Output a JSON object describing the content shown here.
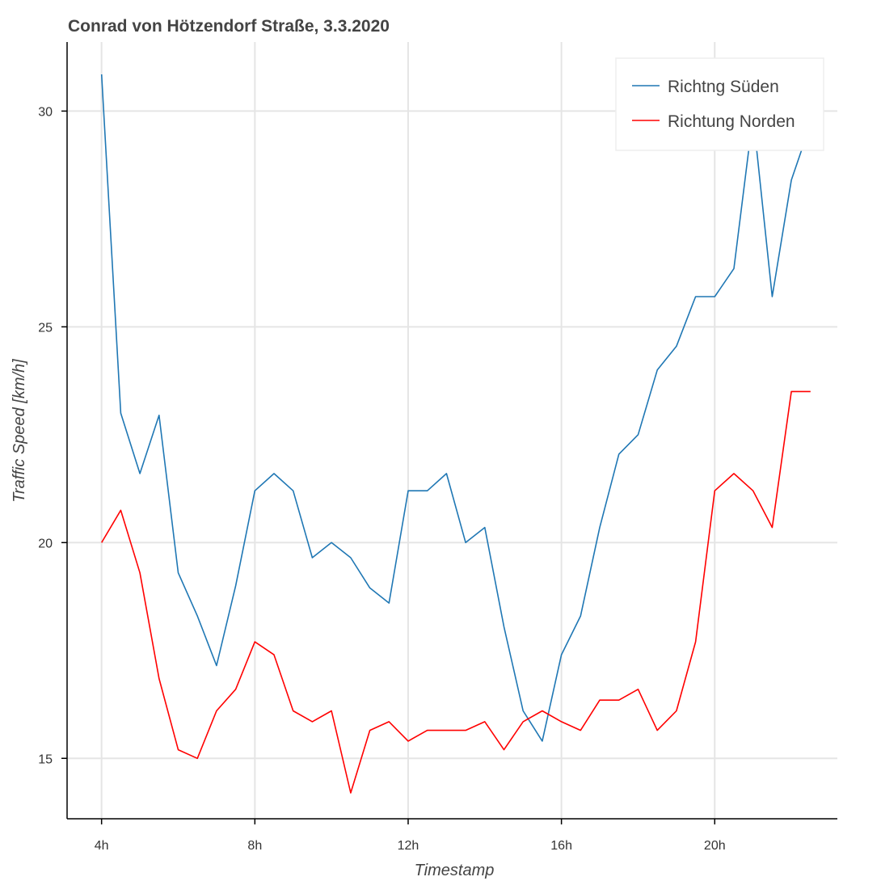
{
  "chart_data": {
    "type": "line",
    "title": "Conrad von Hötzendorf Straße, 3.3.2020",
    "xlabel": "Timestamp",
    "ylabel": "Traffic Speed [km/h]",
    "xlim": [
      3.1,
      23.2
    ],
    "ylim": [
      13.6,
      31.6
    ],
    "x_ticks": [
      4,
      8,
      12,
      16,
      20
    ],
    "x_tick_labels": [
      "4h",
      "8h",
      "12h",
      "16h",
      "20h"
    ],
    "y_ticks": [
      15,
      20,
      25,
      30
    ],
    "y_tick_labels": [
      "15",
      "20",
      "25",
      "30"
    ],
    "grid": true,
    "legend_position": "top-right",
    "x": [
      4,
      4.5,
      5,
      5.5,
      6,
      6.5,
      7,
      7.5,
      8,
      8.5,
      9,
      9.5,
      10,
      10.5,
      11,
      11.5,
      12,
      12.5,
      13,
      13.5,
      14,
      14.5,
      15,
      15.5,
      16,
      16.5,
      17,
      17.5,
      18,
      18.5,
      19,
      19.5,
      20,
      20.5,
      21,
      21.5,
      22,
      22.5
    ],
    "series": [
      {
        "name": "Richtng Süden",
        "color": "#1f77b4",
        "values": [
          30.85,
          23.0,
          21.6,
          22.95,
          19.3,
          18.3,
          17.15,
          19.0,
          21.2,
          21.6,
          21.2,
          19.65,
          20.0,
          19.65,
          18.95,
          18.6,
          21.2,
          21.2,
          21.6,
          20.0,
          20.35,
          18.05,
          16.1,
          15.4,
          17.4,
          18.3,
          20.35,
          22.05,
          22.5,
          24.0,
          24.55,
          25.7,
          25.7,
          26.35,
          29.9,
          25.7,
          28.4,
          29.7
        ]
      },
      {
        "name": "Richtung Norden",
        "color": "#ff0000",
        "values": [
          20.0,
          20.75,
          19.3,
          16.85,
          15.2,
          15.0,
          16.1,
          16.6,
          17.7,
          17.4,
          16.1,
          15.85,
          16.1,
          14.2,
          15.65,
          15.85,
          15.4,
          15.65,
          15.65,
          15.65,
          15.85,
          15.2,
          15.85,
          16.1,
          15.85,
          15.65,
          16.35,
          16.35,
          16.6,
          15.65,
          16.1,
          17.7,
          21.2,
          21.6,
          21.2,
          20.35,
          23.5,
          23.5
        ]
      }
    ]
  }
}
